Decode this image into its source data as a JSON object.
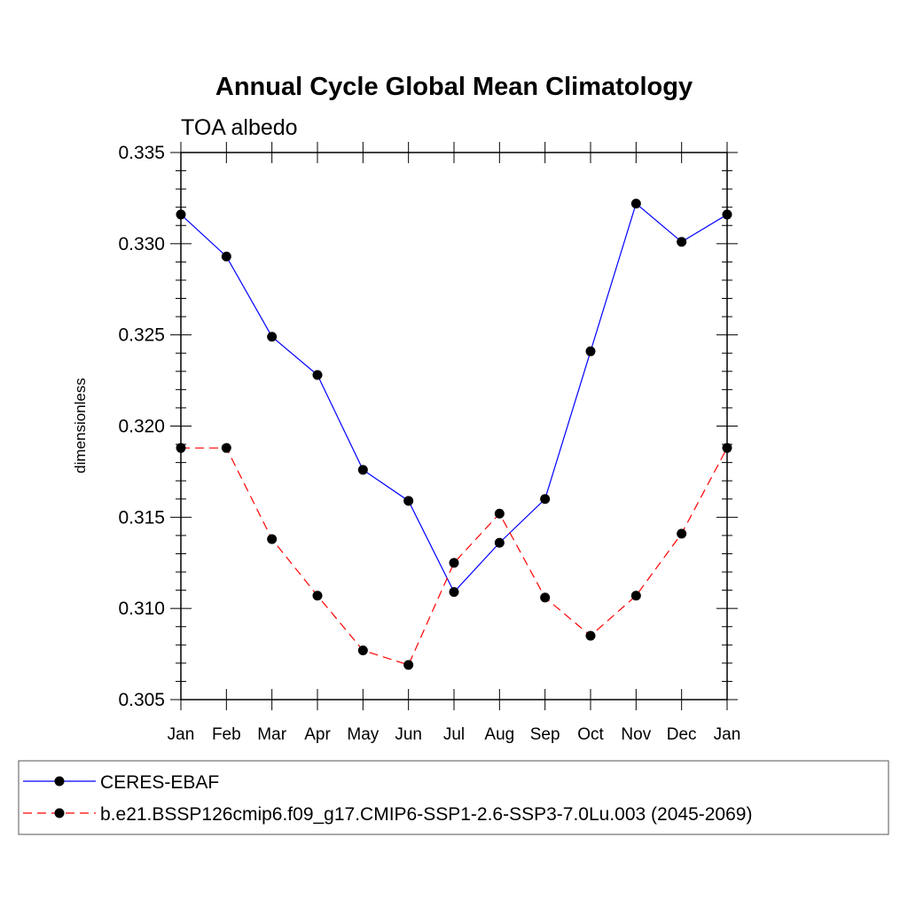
{
  "chart_data": {
    "type": "line",
    "title": "Annual Cycle Global Mean Climatology",
    "subtitle": "TOA albedo",
    "ylabel": "dimensionless",
    "xlabel": "",
    "categories": [
      "Jan",
      "Feb",
      "Mar",
      "Apr",
      "May",
      "Jun",
      "Jul",
      "Aug",
      "Sep",
      "Oct",
      "Nov",
      "Dec",
      "Jan"
    ],
    "ylim": [
      0.305,
      0.335
    ],
    "yticks": [
      "0.305",
      "0.310",
      "0.315",
      "0.320",
      "0.325",
      "0.330",
      "0.335"
    ],
    "series": [
      {
        "name": "CERES-EBAF",
        "color": "#0000ff",
        "style": "solid",
        "values": [
          0.3316,
          0.3293,
          0.3249,
          0.3228,
          0.3176,
          0.3159,
          0.3109,
          0.3136,
          0.316,
          0.3241,
          0.3322,
          0.3301,
          0.3316
        ]
      },
      {
        "name": "b.e21.BSSP126cmip6.f09_g17.CMIP6-SSP1-2.6-SSP3-7.0Lu.003 (2045-2069)",
        "color": "#ff0000",
        "style": "dashed",
        "values": [
          0.3188,
          0.3188,
          0.3138,
          0.3107,
          0.3077,
          0.3069,
          0.3125,
          0.3152,
          0.3106,
          0.3085,
          0.3107,
          0.3141,
          0.3188
        ]
      }
    ],
    "grid": false,
    "legend_position": "bottom"
  }
}
